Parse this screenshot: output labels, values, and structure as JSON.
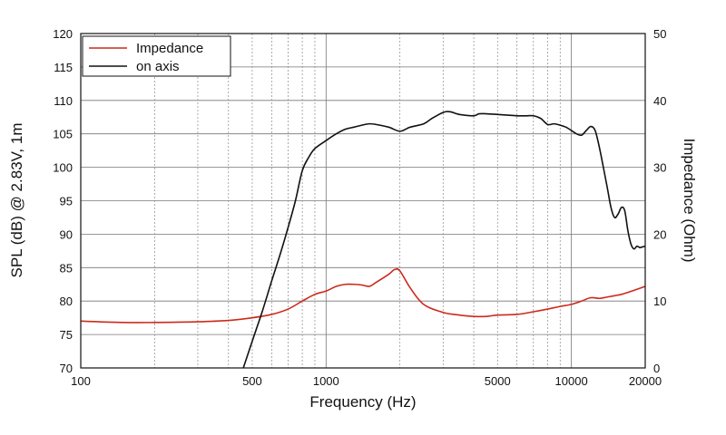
{
  "chart_data": {
    "type": "line",
    "xlabel": "Frequency (Hz)",
    "ylabel": "SPL (dB) @ 2.83V, 1m",
    "y2label": "Impedance (Ohm)",
    "x_scale": "log",
    "xlim": [
      100,
      20000
    ],
    "ylim": [
      70,
      120
    ],
    "y2lim": [
      0,
      50
    ],
    "x_ticks": [
      100,
      500,
      1000,
      5000,
      10000,
      20000
    ],
    "x_tick_labels": [
      "100",
      "500",
      "1000",
      "5000",
      "10000",
      "20000"
    ],
    "y_ticks": [
      70,
      75,
      80,
      85,
      90,
      95,
      100,
      105,
      110,
      115,
      120
    ],
    "y_tick_labels": [
      "70",
      "75",
      "80",
      "85",
      "90",
      "95",
      "100",
      "105",
      "110",
      "115",
      "120"
    ],
    "y2_ticks": [
      0,
      10,
      20,
      30,
      40,
      50
    ],
    "y2_tick_labels": [
      "0",
      "10",
      "20",
      "30",
      "40",
      "50"
    ],
    "grid": true,
    "legend_position": "top-left",
    "series": [
      {
        "name": "Impedance",
        "color": "#cc2a1a",
        "axis": "right",
        "x": [
          100,
          150,
          200,
          300,
          400,
          500,
          600,
          700,
          800,
          900,
          1000,
          1100,
          1200,
          1300,
          1400,
          1500,
          1600,
          1800,
          1900,
          2000,
          2200,
          2500,
          3000,
          3500,
          4000,
          4500,
          5000,
          6000,
          7000,
          8000,
          9000,
          10000,
          11000,
          12000,
          13000,
          14000,
          15000,
          16000,
          17000,
          18000,
          19000,
          20000
        ],
        "y": [
          7.0,
          6.8,
          6.8,
          6.9,
          7.1,
          7.5,
          8.0,
          8.8,
          10.0,
          11.0,
          11.5,
          12.2,
          12.5,
          12.5,
          12.4,
          12.2,
          12.8,
          14.0,
          14.7,
          14.5,
          12.0,
          9.5,
          8.3,
          7.9,
          7.7,
          7.7,
          7.9,
          8.0,
          8.4,
          8.8,
          9.2,
          9.5,
          10.0,
          10.5,
          10.4,
          10.6,
          10.8,
          11.0,
          11.3,
          11.6,
          11.9,
          12.2
        ]
      },
      {
        "name": "on axis",
        "color": "#111111",
        "axis": "left",
        "x": [
          460,
          500,
          550,
          600,
          650,
          700,
          750,
          800,
          850,
          900,
          1000,
          1100,
          1200,
          1300,
          1400,
          1500,
          1600,
          1800,
          2000,
          2200,
          2500,
          2700,
          3000,
          3200,
          3500,
          4000,
          4200,
          4500,
          5000,
          5500,
          6000,
          6500,
          7000,
          7500,
          8000,
          8500,
          9000,
          9500,
          10000,
          10500,
          11000,
          11500,
          12000,
          12500,
          13000,
          13500,
          14000,
          14500,
          15000,
          15500,
          16000,
          16500,
          17000,
          17500,
          18000,
          18500,
          19000,
          19500,
          20000
        ],
        "y": [
          70.0,
          74.0,
          78.5,
          83.0,
          87.0,
          91.0,
          95.0,
          99.5,
          101.5,
          102.8,
          104.0,
          105.0,
          105.7,
          106.0,
          106.3,
          106.5,
          106.4,
          106.0,
          105.4,
          106.0,
          106.5,
          107.3,
          108.2,
          108.3,
          107.9,
          107.7,
          108.0,
          108.0,
          107.9,
          107.8,
          107.7,
          107.7,
          107.7,
          107.3,
          106.4,
          106.5,
          106.3,
          106.0,
          105.5,
          105.0,
          104.8,
          105.5,
          106.1,
          105.5,
          103.0,
          100.0,
          97.0,
          94.0,
          92.5,
          93.0,
          94.0,
          93.5,
          90.5,
          88.5,
          87.8,
          88.2,
          88.0,
          88.1,
          88.2
        ]
      }
    ]
  }
}
